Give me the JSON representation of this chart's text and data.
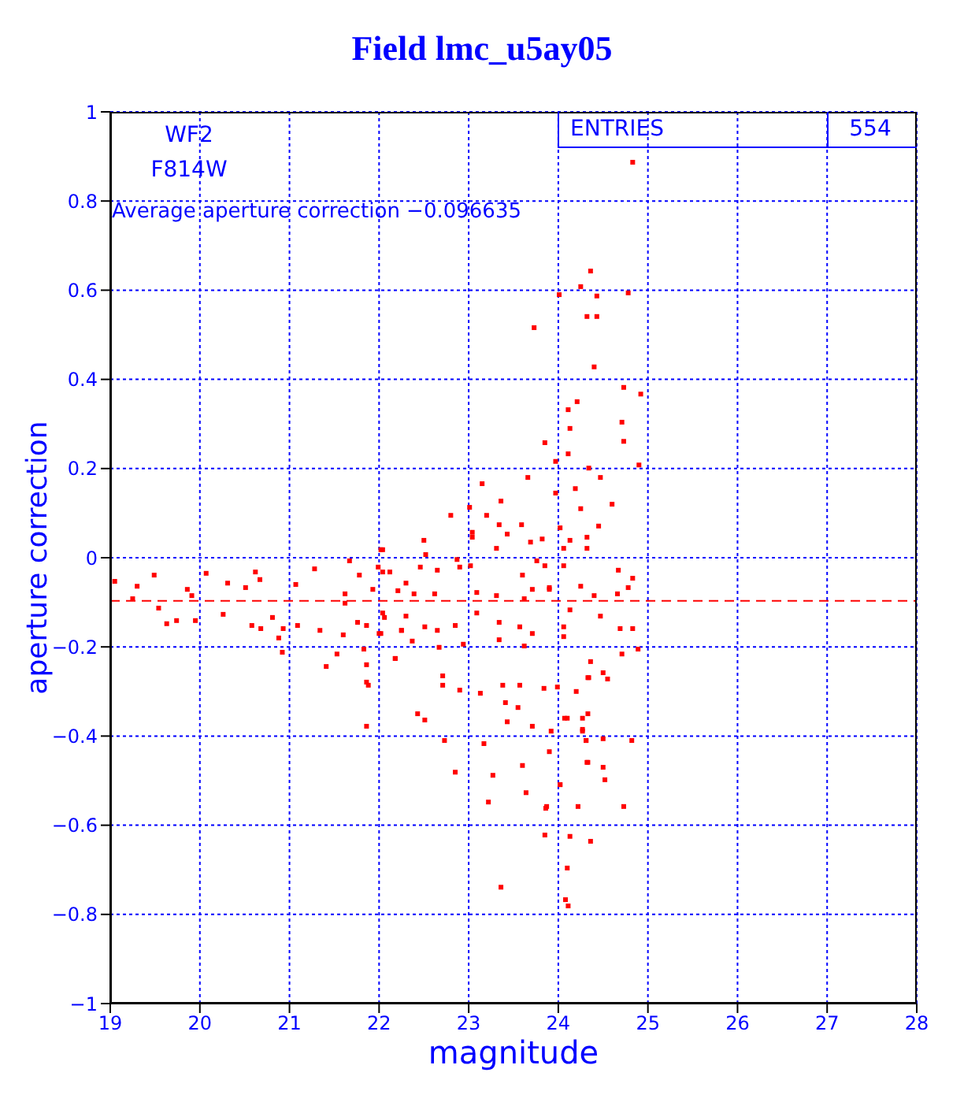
{
  "chart_data": {
    "type": "scatter",
    "title": "Field lmc_u5ay05",
    "xlabel": "magnitude",
    "ylabel": "aperture correction",
    "annotations": [
      "WF2",
      "F814W",
      "ENTRIES",
      "554",
      "Average aperture correction −0.096635"
    ],
    "xlim": [
      19,
      28
    ],
    "xticks": [
      19,
      20,
      21,
      22,
      23,
      24,
      25,
      26,
      27,
      28
    ],
    "ylim": [
      -1,
      1
    ],
    "yticks": [
      -1,
      -0.8,
      -0.6,
      -0.4,
      -0.2,
      0,
      0.2,
      0.4,
      0.6,
      0.8,
      1
    ],
    "grid": true,
    "marker": "square",
    "ref_lines": [
      {
        "axis": "y",
        "value": -0.096635,
        "color": "#ff0000",
        "line_style": "dashed"
      }
    ],
    "series": [
      {
        "color": "#ff0000",
        "x": [
          19.05,
          19.3,
          19.25,
          19.54,
          19.63,
          19.74,
          19.49,
          19.86,
          19.91,
          19.95,
          20.07,
          20.26,
          20.31,
          20.51,
          20.58,
          20.68,
          20.67,
          20.62,
          20.81,
          20.88,
          20.93,
          21.07,
          21.09,
          20.92,
          21.28,
          21.34,
          21.41,
          21.53,
          21.67,
          21.62,
          21.62,
          21.6,
          21.78,
          21.83,
          21.86,
          21.76,
          22.04,
          21.99,
          22.06,
          22.02,
          22.18,
          22.3,
          22.25,
          21.86,
          23.15,
          23.66,
          23.36,
          23.01,
          23.2,
          23.34,
          23.59,
          23.04,
          23.43,
          23.69,
          22.8,
          22.5,
          23.04,
          23.31,
          22.52,
          22.87,
          22.02,
          22.04,
          22.12,
          22.46,
          22.65,
          22.9,
          23.02,
          23.6,
          23.85,
          23.9,
          23.71,
          23.62,
          21.93,
          22.21,
          22.39,
          22.62,
          23.09,
          23.31,
          22.04,
          22.3,
          22.51,
          22.65,
          22.85,
          23.09,
          23.34,
          23.57,
          23.71,
          24.06,
          22.25,
          21.86,
          22.0,
          22.37,
          22.67,
          22.94,
          23.34,
          23.62,
          22.18,
          22.71,
          22.9,
          23.13,
          23.38,
          23.57,
          23.84,
          23.99,
          24.33,
          22.71,
          23.41,
          23.55,
          21.88,
          22.43,
          22.51,
          23.43,
          23.71,
          23.92,
          24.07,
          24.33,
          21.86,
          22.73,
          23.17,
          24.27,
          24.31,
          23.9,
          23.6,
          22.85,
          23.27,
          24.33,
          23.64,
          24.02,
          23.22,
          23.87,
          24.22,
          23.85,
          24.13,
          24.36,
          24.1,
          23.36,
          24.08,
          24.11,
          24.36,
          24.25,
          24.01,
          24.43,
          24.78,
          24.32,
          24.43,
          24.4,
          24.73,
          24.92,
          24.11,
          24.21,
          24.13,
          24.71,
          24.73,
          23.85,
          24.11,
          23.97,
          24.34,
          24.9,
          24.47,
          23.97,
          24.19,
          24.25,
          24.6,
          24.02,
          24.45,
          23.82,
          24.13,
          24.32,
          24.06,
          24.32,
          23.76,
          24.06,
          24.67,
          24.83,
          23.9,
          24.25,
          24.78,
          24.66,
          24.4,
          24.13,
          24.47,
          24.69,
          24.83,
          24.06,
          24.89,
          24.71,
          24.36,
          24.34,
          24.2,
          24.5,
          24.55,
          24.1,
          24.27,
          24.27,
          24.31,
          24.5,
          24.82,
          24.32,
          24.5,
          24.52,
          24.02,
          23.86,
          24.73,
          24.83,
          23.73
        ],
        "values": [
          -0.053,
          -0.064,
          -0.092,
          -0.113,
          -0.148,
          -0.141,
          -0.039,
          -0.071,
          -0.085,
          -0.141,
          -0.035,
          -0.127,
          -0.057,
          -0.067,
          -0.152,
          -0.159,
          -0.049,
          -0.032,
          -0.134,
          -0.18,
          -0.159,
          -0.06,
          -0.152,
          -0.212,
          -0.025,
          -0.163,
          -0.244,
          -0.216,
          -0.007,
          -0.081,
          -0.102,
          -0.173,
          -0.039,
          -0.205,
          -0.279,
          -0.145,
          0.018,
          -0.021,
          -0.134,
          -0.17,
          -0.226,
          -0.057,
          -0.163,
          -0.24,
          0.166,
          0.18,
          0.127,
          0.113,
          0.095,
          0.074,
          0.074,
          0.057,
          0.053,
          0.035,
          0.095,
          0.039,
          0.046,
          0.021,
          0.007,
          -0.004,
          0.018,
          -0.032,
          -0.032,
          -0.021,
          -0.028,
          -0.021,
          -0.018,
          -0.039,
          -0.018,
          -0.067,
          -0.071,
          -0.092,
          -0.071,
          -0.074,
          -0.081,
          -0.081,
          -0.078,
          -0.085,
          -0.124,
          -0.131,
          -0.155,
          -0.163,
          -0.152,
          -0.124,
          -0.145,
          -0.155,
          -0.17,
          -0.155,
          -0.163,
          -0.152,
          -0.17,
          -0.187,
          -0.201,
          -0.194,
          -0.184,
          -0.198,
          -0.226,
          -0.265,
          -0.297,
          -0.304,
          -0.286,
          -0.286,
          -0.293,
          -0.29,
          -0.269,
          -0.286,
          -0.325,
          -0.336,
          -0.286,
          -0.35,
          -0.364,
          -0.368,
          -0.378,
          -0.389,
          -0.36,
          -0.35,
          -0.378,
          -0.41,
          -0.417,
          -0.385,
          -0.41,
          -0.435,
          -0.466,
          -0.481,
          -0.488,
          -0.459,
          -0.527,
          -0.509,
          -0.548,
          -0.558,
          -0.558,
          -0.622,
          -0.625,
          -0.636,
          -0.696,
          -0.739,
          -0.767,
          -0.781,
          0.643,
          0.608,
          0.59,
          0.587,
          0.594,
          0.541,
          0.541,
          0.428,
          0.382,
          0.367,
          0.332,
          0.35,
          0.29,
          0.304,
          0.261,
          0.258,
          0.233,
          0.216,
          0.201,
          0.208,
          0.18,
          0.145,
          0.155,
          0.11,
          0.12,
          0.067,
          0.071,
          0.042,
          0.039,
          0.046,
          0.021,
          0.021,
          -0.007,
          -0.018,
          -0.028,
          -0.046,
          -0.071,
          -0.064,
          -0.067,
          -0.081,
          -0.085,
          -0.117,
          -0.131,
          -0.159,
          -0.159,
          -0.177,
          -0.205,
          -0.216,
          -0.233,
          -0.269,
          -0.3,
          -0.258,
          -0.272,
          -0.36,
          -0.36,
          -0.389,
          -0.41,
          -0.406,
          -0.41,
          -0.459,
          -0.47,
          -0.498,
          -0.509,
          -0.562,
          -0.558,
          0.887,
          0.516
        ]
      }
    ]
  }
}
